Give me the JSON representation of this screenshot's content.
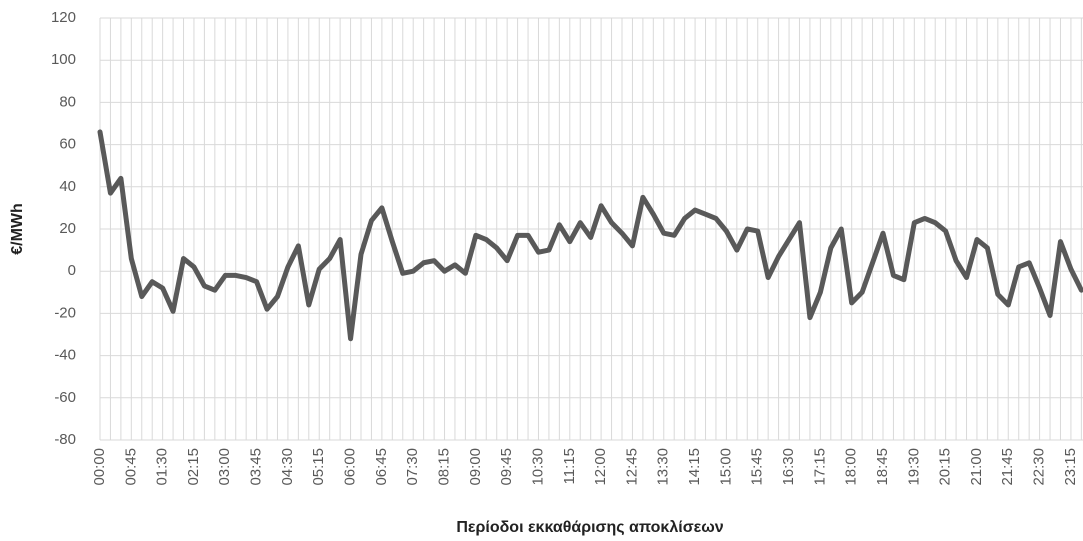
{
  "chart_data": {
    "type": "line",
    "xlabel": "Περίοδοι εκκαθάρισης αποκλίσεων",
    "ylabel": "€/MWh",
    "categories": [
      "00:00",
      null,
      null,
      "00:45",
      null,
      null,
      "01:30",
      null,
      null,
      "02:15",
      null,
      null,
      "03:00",
      null,
      null,
      "03:45",
      null,
      null,
      "04:30",
      null,
      null,
      "05:15",
      null,
      null,
      "06:00",
      null,
      null,
      "06:45",
      null,
      null,
      "07:30",
      null,
      null,
      "08:15",
      null,
      null,
      "09:00",
      null,
      null,
      "09:45",
      null,
      null,
      "10:30",
      null,
      null,
      "11:15",
      null,
      null,
      "12:00",
      null,
      null,
      "12:45",
      null,
      null,
      "13:30",
      null,
      null,
      "14:15",
      null,
      null,
      "15:00",
      null,
      null,
      "15:45",
      null,
      null,
      "16:30",
      null,
      null,
      "17:15",
      null,
      null,
      "18:00",
      null,
      null,
      "18:45",
      null,
      null,
      "19:30",
      null,
      null,
      "20:15",
      null,
      null,
      "21:00",
      null,
      null,
      "21:45",
      null,
      null,
      "22:30",
      null,
      null,
      "23:15",
      null
    ],
    "values": [
      66,
      37,
      44,
      6,
      -12,
      -5,
      -8,
      -19,
      6,
      2,
      -7,
      -9,
      -2,
      -2,
      -3,
      -5,
      -18,
      -12,
      2,
      12,
      -16,
      1,
      6,
      15,
      -32,
      8,
      24,
      30,
      14,
      -1,
      0,
      4,
      5,
      0,
      3,
      -1,
      17,
      15,
      11,
      5,
      17,
      17,
      9,
      10,
      22,
      14,
      23,
      16,
      31,
      23,
      18,
      12,
      35,
      27,
      18,
      17,
      25,
      29,
      27,
      25,
      19,
      10,
      20,
      19,
      -3,
      7,
      15,
      23,
      -22,
      -10,
      11,
      20,
      -15,
      -10,
      4,
      18,
      -2,
      -4,
      23,
      25,
      23,
      19,
      5,
      -3,
      15,
      11,
      -11,
      -16,
      2,
      4,
      -8,
      -21,
      14,
      1,
      -9
    ],
    "color": "#595959",
    "ylim": [
      -80,
      120
    ],
    "yticks": [
      -80,
      -60,
      -40,
      -20,
      0,
      20,
      40,
      60,
      80,
      100,
      120
    ],
    "grid": true
  }
}
